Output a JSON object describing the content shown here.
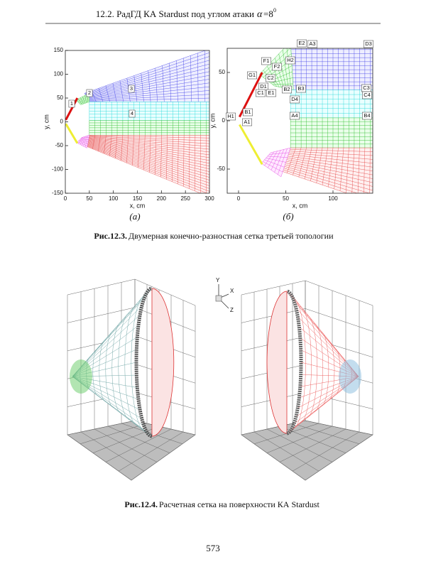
{
  "header": {
    "title": "12.2. РадГД КА Stardust под углом атаки",
    "symbol": "α",
    "value": "=8",
    "sup": "0"
  },
  "figure_12_3": {
    "panel_a": {
      "xlabel": "x, cm",
      "ylabel": "y, cm",
      "xticks": [
        0,
        50,
        100,
        150,
        200,
        250,
        300
      ],
      "yticks": [
        -150,
        -100,
        -50,
        0,
        50,
        100,
        150
      ],
      "blocks": [
        "1",
        "2",
        "3",
        "4"
      ],
      "label": "(а)"
    },
    "panel_b": {
      "xlabel": "x, cm",
      "ylabel": "y, cm",
      "xticks": [
        0,
        50,
        100
      ],
      "yticks": [
        -50,
        0,
        50
      ],
      "blocks": [
        "E2",
        "A3",
        "D3",
        "F1",
        "F2",
        "H2",
        "G1",
        "C2",
        "D1",
        "B2",
        "B3",
        "C1",
        "E1",
        "C3",
        "C4",
        "D4",
        "H1",
        "B1",
        "A1",
        "A4",
        "B4"
      ],
      "label": "(б)"
    },
    "caption": {
      "number": "Рис.12.3.",
      "text": "Двумерная конечно-разностная сетка третьей топологии"
    }
  },
  "figure_12_4": {
    "triad": [
      "Y",
      "X",
      "Z"
    ],
    "caption": {
      "number": "Рис.12.4.",
      "text": "Расчетная сетка на поверхности КА Stardust"
    }
  },
  "page_number": "573"
}
